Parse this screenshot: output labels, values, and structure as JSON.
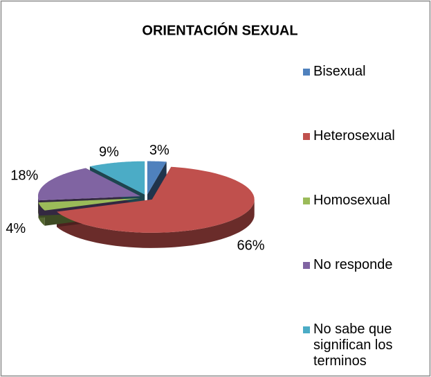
{
  "chart_data": {
    "type": "pie",
    "title": "ORIENTACIÓN SEXUAL",
    "categories": [
      "Bisexual",
      "Heterosexual",
      "Homosexual",
      "No responde",
      "No sabe que significan los terminos"
    ],
    "values": [
      3,
      66,
      4,
      18,
      9
    ],
    "value_labels": [
      "3%",
      "66%",
      "4%",
      "18%",
      "9%"
    ],
    "colors": [
      "#4f81bd",
      "#c0504d",
      "#9bbb59",
      "#8064a2",
      "#4bacc6"
    ],
    "legend": "right"
  }
}
